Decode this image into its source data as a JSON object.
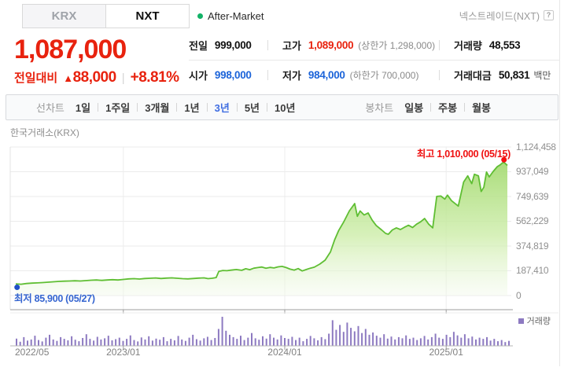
{
  "tabs": {
    "krx": "KRX",
    "nxt": "NXT",
    "after_market": "After-Market",
    "nxt_info": "넥스트레이드(NXT)",
    "help_icon": "?"
  },
  "price": {
    "current": "1,087,000",
    "change_label": "전일대비",
    "change_arrow": "▲",
    "change": "88,000",
    "separator": "|",
    "change_pct": "+8.81%"
  },
  "summary": {
    "rows": [
      {
        "cells": [
          {
            "label": "전일",
            "value": "999,000",
            "color": "black"
          },
          {
            "label": "고가",
            "value": "1,089,000",
            "color": "red",
            "extra": "(상한가 1,298,000)"
          },
          {
            "label": "거래량",
            "value": "48,553",
            "color": "black"
          }
        ]
      },
      {
        "cells": [
          {
            "label": "시가",
            "value": "998,000",
            "color": "blue"
          },
          {
            "label": "저가",
            "value": "984,000",
            "color": "blue",
            "extra": "(하한가 700,000)"
          },
          {
            "label": "거래대금",
            "value": "50,831",
            "color": "black",
            "unit": "백만"
          }
        ]
      }
    ]
  },
  "period_bar": {
    "line_label": "선차트",
    "line_options": [
      {
        "label": "1일",
        "selected": false
      },
      {
        "label": "1주일",
        "selected": false
      },
      {
        "label": "3개월",
        "selected": false
      },
      {
        "label": "1년",
        "selected": false
      },
      {
        "label": "3년",
        "selected": true
      },
      {
        "label": "5년",
        "selected": false
      },
      {
        "label": "10년",
        "selected": false
      }
    ],
    "candle_label": "봉차트",
    "candle_options": [
      {
        "label": "일봉",
        "selected": false
      },
      {
        "label": "주봉",
        "selected": false
      },
      {
        "label": "월봉",
        "selected": false
      }
    ]
  },
  "chart_data": {
    "type": "area",
    "source_label": "한국거래소(KRX)",
    "x_unit": "months since 2022-05",
    "x_range": [
      0,
      36.6
    ],
    "y_max": 1124458,
    "y_tick_labels": [
      "1,124,458",
      "937,049",
      "749,639",
      "562,229",
      "374,819",
      "187,410",
      "0"
    ],
    "x_ticks": [
      {
        "m": 0.0,
        "label": "2022/05",
        "align": "left"
      },
      {
        "m": 8.0,
        "label": "2023/01",
        "align": "center"
      },
      {
        "m": 20.0,
        "label": "2024/01",
        "align": "center"
      },
      {
        "m": 32.0,
        "label": "2025/01",
        "align": "center"
      }
    ],
    "grid_months": [
      8,
      20,
      32
    ],
    "annotations": {
      "high": {
        "text": "최고 1,010,000 (05/15)",
        "value": 1010000,
        "date": "05/15",
        "m": 36.3
      },
      "low": {
        "text": "최저 85,900 (05/27)",
        "value": 85900,
        "date": "05/27",
        "m": 0.1
      }
    },
    "volume_legend": "거래량",
    "points": [
      [
        0,
        88000
      ],
      [
        0.4,
        85900
      ],
      [
        0.8,
        91000
      ],
      [
        1.2,
        94000
      ],
      [
        1.6,
        96000
      ],
      [
        2,
        98000
      ],
      [
        2.4,
        101000
      ],
      [
        2.8,
        104000
      ],
      [
        3.2,
        107000
      ],
      [
        3.6,
        109000
      ],
      [
        4,
        110000
      ],
      [
        4.4,
        112000
      ],
      [
        4.8,
        110000
      ],
      [
        5.2,
        113000
      ],
      [
        5.6,
        116000
      ],
      [
        6,
        118000
      ],
      [
        6.4,
        115000
      ],
      [
        6.8,
        118000
      ],
      [
        7.2,
        120000
      ],
      [
        7.6,
        118000
      ],
      [
        8,
        122000
      ],
      [
        8.4,
        126000
      ],
      [
        8.8,
        128000
      ],
      [
        9.2,
        125000
      ],
      [
        9.6,
        129000
      ],
      [
        10,
        131000
      ],
      [
        10.4,
        133000
      ],
      [
        10.8,
        129000
      ],
      [
        11.2,
        132000
      ],
      [
        11.6,
        134000
      ],
      [
        12,
        131000
      ],
      [
        12.4,
        128000
      ],
      [
        12.8,
        126000
      ],
      [
        13.2,
        129000
      ],
      [
        13.6,
        132000
      ],
      [
        14,
        134000
      ],
      [
        14.3,
        128000
      ],
      [
        14.6,
        131000
      ],
      [
        14.9,
        136000
      ],
      [
        15.1,
        183000
      ],
      [
        15.4,
        190000
      ],
      [
        15.7,
        188000
      ],
      [
        16,
        192000
      ],
      [
        16.4,
        197000
      ],
      [
        16.8,
        191000
      ],
      [
        17.1,
        203000
      ],
      [
        17.4,
        196000
      ],
      [
        17.7,
        207000
      ],
      [
        18,
        212000
      ],
      [
        18.3,
        216000
      ],
      [
        18.6,
        207000
      ],
      [
        18.9,
        213000
      ],
      [
        19.2,
        209000
      ],
      [
        19.5,
        217000
      ],
      [
        19.8,
        221000
      ],
      [
        20.1,
        212000
      ],
      [
        20.4,
        200000
      ],
      [
        20.7,
        193000
      ],
      [
        21,
        204000
      ],
      [
        21.3,
        186000
      ],
      [
        21.6,
        197000
      ],
      [
        21.9,
        207000
      ],
      [
        22.2,
        215000
      ],
      [
        22.6,
        238000
      ],
      [
        23,
        268000
      ],
      [
        23.4,
        330000
      ],
      [
        23.7,
        420000
      ],
      [
        24,
        490000
      ],
      [
        24.4,
        560000
      ],
      [
        24.8,
        640000
      ],
      [
        25.2,
        696000
      ],
      [
        25.4,
        600000
      ],
      [
        25.6,
        640000
      ],
      [
        25.9,
        610000
      ],
      [
        26.2,
        625000
      ],
      [
        26.5,
        570000
      ],
      [
        26.8,
        530000
      ],
      [
        27.2,
        497000
      ],
      [
        27.5,
        470000
      ],
      [
        27.7,
        464000
      ],
      [
        28,
        497000
      ],
      [
        28.3,
        512000
      ],
      [
        28.6,
        500000
      ],
      [
        28.9,
        517000
      ],
      [
        29.2,
        532000
      ],
      [
        29.5,
        515000
      ],
      [
        29.8,
        540000
      ],
      [
        30.1,
        558000
      ],
      [
        30.4,
        583000
      ],
      [
        30.7,
        540000
      ],
      [
        31,
        512000
      ],
      [
        31.3,
        750000
      ],
      [
        31.6,
        753000
      ],
      [
        31.9,
        730000
      ],
      [
        32.1,
        760000
      ],
      [
        32.4,
        718000
      ],
      [
        32.9,
        677000
      ],
      [
        33.3,
        859000
      ],
      [
        33.6,
        906000
      ],
      [
        33.9,
        847000
      ],
      [
        34.1,
        918000
      ],
      [
        34.4,
        906000
      ],
      [
        34.6,
        788000
      ],
      [
        34.8,
        820000
      ],
      [
        35,
        935000
      ],
      [
        35.2,
        898000
      ],
      [
        35.5,
        940000
      ],
      [
        35.8,
        976000
      ],
      [
        36,
        988000
      ],
      [
        36.2,
        1005000
      ],
      [
        36.3,
        1008000
      ],
      [
        36.55,
        985000
      ]
    ],
    "volume_relative": [
      25,
      14,
      30,
      18,
      22,
      35,
      20,
      15,
      28,
      38,
      22,
      17,
      30,
      24,
      19,
      33,
      21,
      16,
      27,
      40,
      24,
      18,
      31,
      22,
      26,
      35,
      19,
      23,
      28,
      17,
      24,
      36,
      20,
      15,
      29,
      22,
      33,
      18,
      25,
      21,
      30,
      16,
      24,
      19,
      34,
      22,
      17,
      28,
      38,
      23,
      18,
      26,
      31,
      20,
      27,
      58,
      100,
      52,
      38,
      30,
      24,
      35,
      20,
      28,
      44,
      26,
      21,
      33,
      25,
      40,
      28,
      22,
      36,
      27,
      24,
      31,
      20,
      28,
      16,
      24,
      34,
      26,
      19,
      30,
      23,
      42,
      88,
      55,
      72,
      48,
      80,
      62,
      50,
      68,
      44,
      58,
      38,
      46,
      35,
      28,
      40,
      25,
      32,
      22,
      30,
      26,
      36,
      24,
      28,
      20,
      26,
      34,
      22,
      30,
      42,
      28,
      24,
      38,
      30,
      48,
      36,
      28,
      40,
      26,
      32,
      22,
      28,
      24,
      30,
      18,
      24,
      16,
      20,
      13,
      17
    ]
  },
  "colors": {
    "up_red": "#e8220e",
    "value_blue": "#1c64d9",
    "selected_blue": "#3f6de1",
    "line_green": "#5fbe33",
    "fill_green_top": "#a6db74",
    "fill_green_bottom": "#f3faec",
    "volume_purple": "#8d7ac1",
    "high_dot": "#f50f0f",
    "low_dot": "#2050c8"
  }
}
